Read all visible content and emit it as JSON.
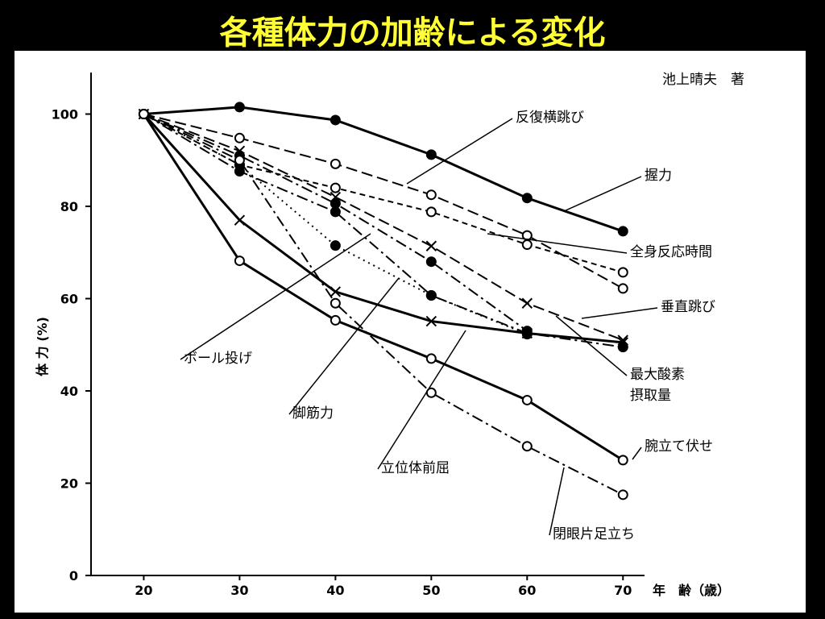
{
  "title": "各種体力の加齢による変化",
  "chart_data": {
    "type": "line",
    "attribution": "池上晴夫　著",
    "y_label": "体 力 (%)",
    "x_label": "年　齢（歳）",
    "x": [
      20,
      30,
      40,
      50,
      60,
      70
    ],
    "xlim": [
      14.5,
      72.5
    ],
    "xticks": [
      20,
      30,
      40,
      50,
      60,
      70
    ],
    "ylim": [
      0,
      109
    ],
    "yticks": [
      0,
      20,
      40,
      60,
      80,
      100
    ],
    "series": [
      {
        "name": "握力",
        "color": "#000",
        "line_style": "solid",
        "marker": "filled",
        "values": [
          100,
          101.5,
          98.7,
          91.2,
          81.8,
          74.6
        ]
      },
      {
        "name": "反復横跳び",
        "color": "#000",
        "line_style": "dashed",
        "marker": "open",
        "values": [
          100,
          94.8,
          89.2,
          82.5,
          73.7,
          62.2
        ]
      },
      {
        "name": "全身反応時間",
        "color": "#000",
        "line_style": "short-dashed",
        "marker": "open",
        "values": [
          100,
          89,
          84,
          78.8,
          71.7,
          65.7
        ]
      },
      {
        "name": "垂直跳び",
        "color": "#000",
        "line_style": "dashed",
        "marker": "x",
        "values": [
          100,
          92,
          82,
          71.4,
          59,
          51
        ]
      },
      {
        "name": "最大酸素摂取量",
        "color": "#000",
        "line_style": "dashdot",
        "marker": "filled",
        "values": [
          100,
          87.6,
          78.8,
          60.7,
          52.5,
          49.5
        ]
      },
      {
        "name": "ボール投げ",
        "color": "#000",
        "line_style": "dotted",
        "marker": "filled",
        "values": [
          100,
          89,
          71.5,
          60.7,
          52.3,
          null
        ]
      },
      {
        "name": "脚筋力",
        "color": "#000",
        "line_style": "dashdot",
        "marker": "filled",
        "values": [
          100,
          91,
          80.6,
          68,
          53,
          null
        ]
      },
      {
        "name": "立位体前屈",
        "color": "#000",
        "line_style": "solid",
        "marker": "x",
        "values": [
          100,
          77,
          61.5,
          55.1,
          52.5,
          50.5
        ]
      },
      {
        "name": "腕立て伏せ",
        "color": "#000",
        "line_style": "solid",
        "marker": "open",
        "values": [
          100,
          68.2,
          55.3,
          47,
          38,
          25
        ]
      },
      {
        "name": "閉眼片足立ち",
        "color": "#000",
        "line_style": "dashdot",
        "marker": "open",
        "values": [
          100,
          90,
          59,
          39.6,
          28,
          17.5
        ]
      }
    ]
  }
}
